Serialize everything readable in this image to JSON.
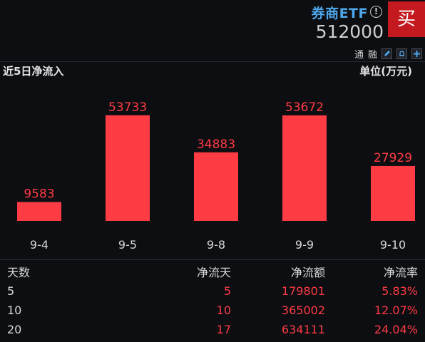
{
  "header": {
    "fund_name": "券商ETF",
    "info_glyph": "!",
    "fund_code": "512000",
    "buy_label": "买",
    "toolbar": {
      "label1": "通",
      "label2": "融"
    }
  },
  "section": {
    "title": "近5日净流入",
    "unit": "单位(万元)"
  },
  "chart_data": {
    "type": "bar",
    "categories": [
      "9-4",
      "9-5",
      "9-8",
      "9-9",
      "9-10"
    ],
    "values": [
      9583,
      53733,
      34883,
      53672,
      27929
    ],
    "title": "近5日净流入",
    "ylabel": "单位(万元)",
    "ylim": [
      0,
      58000
    ],
    "bar_color": "#ff3b44",
    "grid": false
  },
  "table": {
    "headers": [
      "天数",
      "净流天",
      "净流额",
      "净流率"
    ],
    "rows": [
      [
        "5",
        "5",
        "179801",
        "5.83%"
      ],
      [
        "10",
        "10",
        "365002",
        "12.07%"
      ],
      [
        "20",
        "17",
        "634111",
        "24.04%"
      ]
    ]
  },
  "colors": {
    "accent_red": "#ff3b44",
    "buy_red": "#c4191f",
    "name_blue": "#4ea6e8",
    "background": "#0d0e12"
  }
}
